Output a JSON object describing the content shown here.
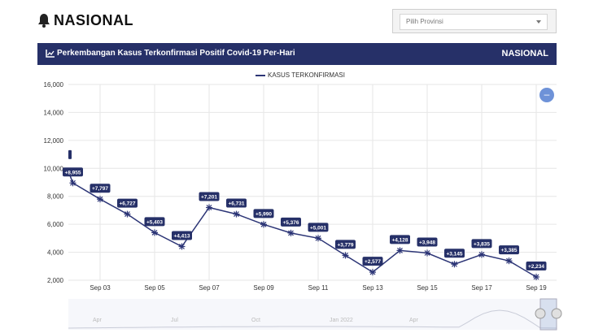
{
  "header": {
    "title": "NASIONAL",
    "icon": "bell-icon"
  },
  "province_select": {
    "placeholder": "Pilih Provinsi"
  },
  "panel": {
    "title": "Perkembangan Kasus Terkonfirmasi Positif Covid-19 Per-Hari",
    "scope": "NASIONAL",
    "icon": "line-chart-icon",
    "color": "#263068"
  },
  "zoom_button": {
    "label": "–"
  },
  "chart_data": {
    "type": "line",
    "legend": [
      "KASUS TERKONFIRMASI"
    ],
    "y_ticks": [
      "16,000",
      "14,000",
      "12,000",
      "10,000",
      "8,000",
      "6,000",
      "4,000",
      "2,000"
    ],
    "x_ticks": [
      "Sep 03",
      "Sep 05",
      "Sep 07",
      "Sep 09",
      "Sep 11",
      "Sep 13",
      "Sep 15",
      "Sep 17",
      "Sep 19"
    ],
    "ylim": [
      2000,
      16000
    ],
    "series": [
      {
        "name": "KASUS TERKONFIRMASI",
        "color": "#2c3576",
        "points": [
          {
            "date": "Sep 02",
            "value": 8955,
            "label": "+8,955"
          },
          {
            "date": "Sep 03",
            "value": 7797,
            "label": "+7,797"
          },
          {
            "date": "Sep 04",
            "value": 6727,
            "label": "+6,727"
          },
          {
            "date": "Sep 05",
            "value": 5403,
            "label": "+5,403"
          },
          {
            "date": "Sep 06",
            "value": 4413,
            "label": "+4,413"
          },
          {
            "date": "Sep 07",
            "value": 7201,
            "label": "+7,201"
          },
          {
            "date": "Sep 08",
            "value": 6731,
            "label": "+6,731"
          },
          {
            "date": "Sep 09",
            "value": 5990,
            "label": "+5,990"
          },
          {
            "date": "Sep 10",
            "value": 5376,
            "label": "+5,376"
          },
          {
            "date": "Sep 11",
            "value": 5001,
            "label": "+5,001"
          },
          {
            "date": "Sep 12",
            "value": 3779,
            "label": "+3,779"
          },
          {
            "date": "Sep 13",
            "value": 2577,
            "label": "+2,577"
          },
          {
            "date": "Sep 14",
            "value": 4128,
            "label": "+4,128"
          },
          {
            "date": "Sep 15",
            "value": 3948,
            "label": "+3,948"
          },
          {
            "date": "Sep 16",
            "value": 3145,
            "label": "+3,145"
          },
          {
            "date": "Sep 17",
            "value": 3835,
            "label": "+3,835"
          },
          {
            "date": "Sep 18",
            "value": 3385,
            "label": "+3,385"
          },
          {
            "date": "Sep 19",
            "value": 2234,
            "label": "+2,234"
          }
        ]
      }
    ],
    "navigator_labels": [
      "Apr",
      "Jul",
      "Oct",
      "Jan 2022",
      "Apr"
    ]
  }
}
